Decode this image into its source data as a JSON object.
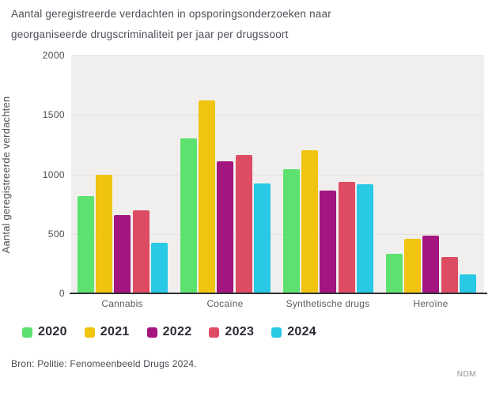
{
  "title": {
    "line1": "Aantal geregistreerde verdachten in opsporingsonderzoeken naar",
    "line2": "georganiseerde drugscriminaliteit per jaar per drugssoort"
  },
  "chart_data": {
    "type": "bar",
    "title": "Aantal geregistreerde verdachten in opsporingsonderzoeken naar georganiseerde drugscriminaliteit per jaar per drugssoort",
    "categories": [
      "Cannabis",
      "Cocaïne",
      "Synthetische drugs",
      "Heroïne"
    ],
    "series": [
      {
        "name": "2020",
        "color": "#5de26f",
        "values": [
          820,
          1300,
          1040,
          330
        ]
      },
      {
        "name": "2021",
        "color": "#f0c411",
        "values": [
          995,
          1620,
          1205,
          460
        ]
      },
      {
        "name": "2022",
        "color": "#a3157f",
        "values": [
          655,
          1110,
          865,
          485
        ]
      },
      {
        "name": "2023",
        "color": "#dd4c62",
        "values": [
          695,
          1165,
          940,
          305
        ]
      },
      {
        "name": "2024",
        "color": "#29c8e4",
        "values": [
          425,
          925,
          920,
          160
        ]
      }
    ],
    "xlabel": "",
    "ylabel": "Aantal geregistreerde verdachten",
    "ylim": [
      0,
      2000
    ],
    "yticks": [
      0,
      500,
      1000,
      1500,
      2000
    ],
    "grid": true,
    "legend_position": "bottom",
    "plot_background": "#f0efee",
    "gridline_color": "#e2e1df",
    "axis_line_color": "#303032"
  },
  "source": "Bron: Politie: Fenomeenbeeld Drugs 2024.",
  "watermark": "NDM"
}
